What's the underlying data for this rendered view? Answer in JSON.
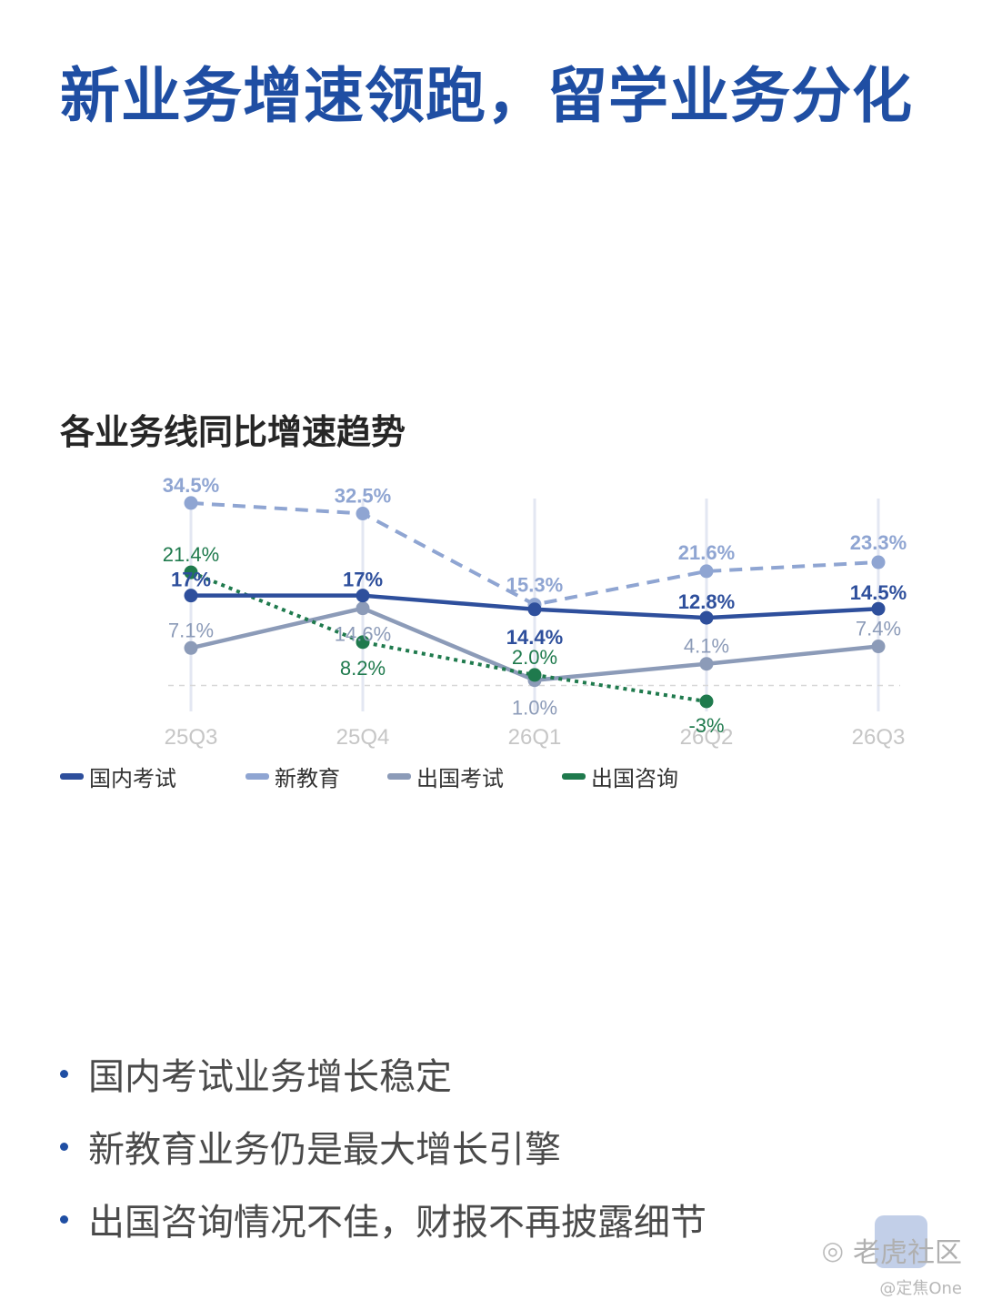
{
  "header": {
    "title": "新业务增速领跑，留学业务分化"
  },
  "chart_data": {
    "type": "line",
    "title": "各业务线同比增速趋势",
    "categories": [
      "25Q3",
      "25Q4",
      "26Q1",
      "26Q2",
      "26Q3"
    ],
    "xlabel": "",
    "ylabel": "",
    "ylim": [
      -3,
      35
    ],
    "grid": "vertical",
    "legend_position": "bottom-left",
    "zero_line": true,
    "series": [
      {
        "name": "国内考试",
        "color": "#2e4f9c",
        "style": "solid",
        "bold_labels": true,
        "values": [
          17,
          17,
          14.4,
          12.8,
          14.5
        ],
        "labels": [
          "17%",
          "17%",
          "14.4%",
          "12.8%",
          "14.5%"
        ]
      },
      {
        "name": "新教育",
        "color": "#8fa5d2",
        "style": "dashed",
        "bold_labels": true,
        "values": [
          34.5,
          32.5,
          15.3,
          21.6,
          23.3
        ],
        "labels": [
          "34.5%",
          "32.5%",
          "15.3%",
          "21.6%",
          "23.3%"
        ]
      },
      {
        "name": "出国考试",
        "color": "#8c9bb8",
        "style": "solid",
        "bold_labels": false,
        "values": [
          7.1,
          14.6,
          1.0,
          4.1,
          7.4
        ],
        "labels": [
          "7.1%",
          "14.6%",
          "1.0%",
          "4.1%",
          "7.4%"
        ]
      },
      {
        "name": "出国咨询",
        "color": "#1f7a4d",
        "style": "dotted",
        "bold_labels": false,
        "values": [
          21.4,
          8.2,
          2.0,
          -3,
          null
        ],
        "labels": [
          "21.4%",
          "8.2%",
          "2.0%",
          "-3%",
          ""
        ]
      }
    ]
  },
  "bullets": [
    "国内考试业务增长稳定",
    "新教育业务仍是最大增长引擎",
    "出国咨询情况不佳，财报不再披露细节"
  ],
  "watermark": {
    "main": "老虎社区",
    "sub": "@定焦One",
    "icon": "tiger-community-icon"
  }
}
